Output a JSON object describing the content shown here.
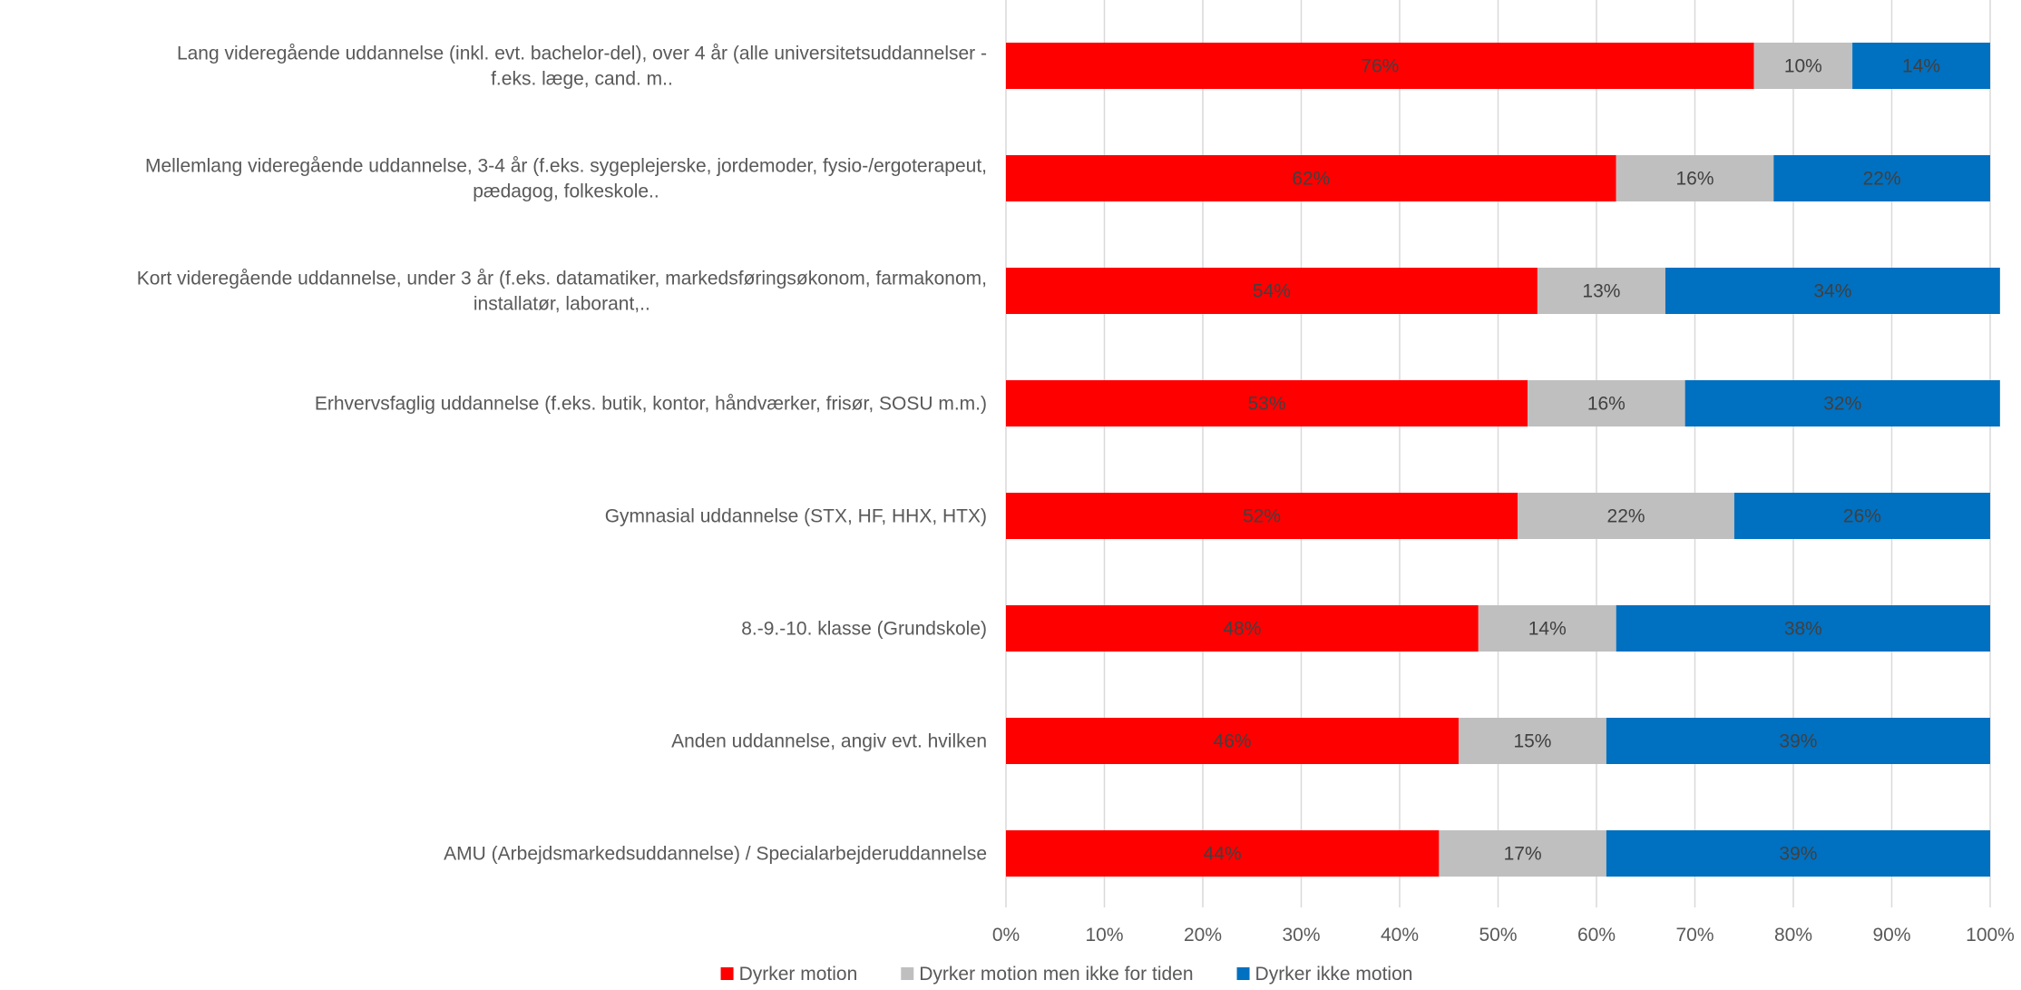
{
  "chart_data": {
    "type": "bar",
    "orientation": "horizontal",
    "stacked": "percent",
    "categories": [
      [
        "Lang videregående uddannelse (inkl. evt. bachelor-del), over 4 år (alle universitetsuddannelser -",
        "f.eks. læge, cand. m.."
      ],
      [
        "Mellemlang videregående uddannelse, 3-4 år (f.eks. sygeplejerske, jordemoder, fysio-/ergoterapeut,",
        "pædagog, folkeskole.."
      ],
      [
        "Kort videregående uddannelse, under 3 år (f.eks. datamatiker, markedsføringsøkonom, farmakonom,",
        "installatør, laborant,.."
      ],
      [
        "Erhvervsfaglig uddannelse (f.eks. butik, kontor, håndværker, frisør, SOSU m.m.)"
      ],
      [
        "Gymnasial uddannelse (STX, HF, HHX, HTX)"
      ],
      [
        "8.-9.-10. klasse (Grundskole)"
      ],
      [
        "Anden uddannelse, angiv evt. hvilken"
      ],
      [
        "AMU (Arbejdsmarkedsuddannelse) / Specialarbejderuddannelse"
      ]
    ],
    "series": [
      {
        "name": "Dyrker motion",
        "color": "#ff0000",
        "values": [
          76,
          62,
          54,
          53,
          52,
          48,
          46,
          44
        ],
        "labels": [
          "76%",
          "62%",
          "54%",
          "53%",
          "52%",
          "48%",
          "46%",
          "44%"
        ]
      },
      {
        "name": "Dyrker motion men ikke for tiden",
        "color": "#bfbfbf",
        "values": [
          10,
          16,
          13,
          16,
          22,
          14,
          15,
          17
        ],
        "labels": [
          "10%",
          "16%",
          "13%",
          "16%",
          "22%",
          "14%",
          "15%",
          "17%"
        ]
      },
      {
        "name": "Dyrker ikke motion",
        "color": "#0070c0",
        "values": [
          14,
          22,
          34,
          32,
          26,
          38,
          39,
          39
        ],
        "labels": [
          "14%",
          "22%",
          "34%",
          "32%",
          "26%",
          "38%",
          "39%",
          "39%"
        ]
      }
    ],
    "xlim": [
      0,
      100
    ],
    "xticks": [
      "0%",
      "10%",
      "20%",
      "30%",
      "40%",
      "50%",
      "60%",
      "70%",
      "80%",
      "90%",
      "100%"
    ],
    "grid": true,
    "legend_position": "bottom"
  }
}
